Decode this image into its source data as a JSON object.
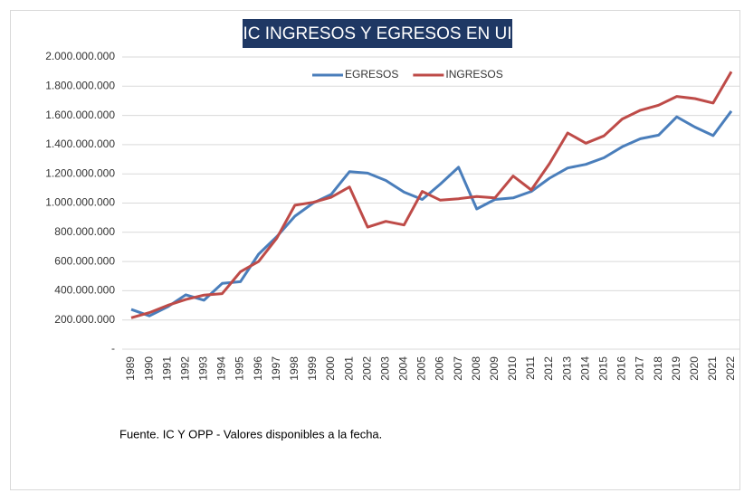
{
  "chart_data": {
    "type": "line",
    "title": "IC INGRESOS Y EGRESOS EN UI",
    "note": "Fuente. IC Y OPP - Valores disponibles a la fecha.",
    "categories": [
      "1989",
      "1990",
      "1991",
      "1992",
      "1993",
      "1994",
      "1995",
      "1996",
      "1997",
      "1998",
      "1999",
      "2000",
      "2001",
      "2002",
      "2003",
      "2004",
      "2005",
      "2006",
      "2007",
      "2008",
      "2009",
      "2010",
      "2011",
      "2012",
      "2013",
      "2014",
      "2015",
      "2016",
      "2017",
      "2018",
      "2019",
      "2020",
      "2021",
      "2022"
    ],
    "series": [
      {
        "name": "EGRESOS",
        "color": "#4a7ebb",
        "values": [
          272000000,
          228000000,
          290000000,
          372000000,
          335000000,
          450000000,
          462000000,
          650000000,
          770000000,
          910000000,
          1000000000,
          1060000000,
          1215000000,
          1205000000,
          1155000000,
          1075000000,
          1025000000,
          1130000000,
          1245000000,
          960000000,
          1025000000,
          1035000000,
          1080000000,
          1170000000,
          1240000000,
          1265000000,
          1310000000,
          1385000000,
          1440000000,
          1465000000,
          1590000000,
          1520000000,
          1462000000,
          1630000000
        ]
      },
      {
        "name": "INGRESOS",
        "color": "#be4b48",
        "values": [
          215000000,
          250000000,
          300000000,
          340000000,
          370000000,
          380000000,
          530000000,
          600000000,
          760000000,
          985000000,
          1005000000,
          1040000000,
          1110000000,
          835000000,
          875000000,
          850000000,
          1080000000,
          1020000000,
          1030000000,
          1045000000,
          1035000000,
          1185000000,
          1090000000,
          1270000000,
          1480000000,
          1410000000,
          1460000000,
          1575000000,
          1635000000,
          1670000000,
          1730000000,
          1715000000,
          1685000000,
          1900000000
        ]
      }
    ],
    "ylim": [
      0,
      2000000000
    ],
    "yticks": [
      {
        "value": 0,
        "label": "-"
      },
      {
        "value": 200000000,
        "label": "200.000.000"
      },
      {
        "value": 400000000,
        "label": "400.000.000"
      },
      {
        "value": 600000000,
        "label": "600.000.000"
      },
      {
        "value": 800000000,
        "label": "800.000.000"
      },
      {
        "value": 1000000000,
        "label": "1.000.000.000"
      },
      {
        "value": 1200000000,
        "label": "1.200.000.000"
      },
      {
        "value": 1400000000,
        "label": "1.400.000.000"
      },
      {
        "value": 1600000000,
        "label": "1.600.000.000"
      },
      {
        "value": 1800000000,
        "label": "1.800.000.000"
      },
      {
        "value": 2000000000,
        "label": "2.000.000.000"
      }
    ],
    "grid": true,
    "legend": "top"
  }
}
